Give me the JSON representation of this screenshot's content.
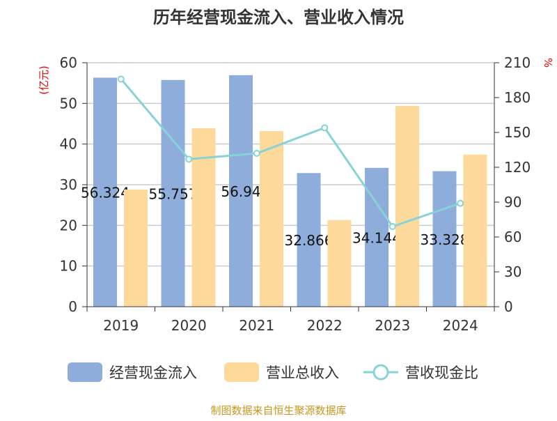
{
  "chart_data": {
    "type": "bar",
    "title": "历年经营现金流入、营业收入情况",
    "categories": [
      "2019",
      "2020",
      "2021",
      "2022",
      "2023",
      "2024"
    ],
    "ylabel_left": "(亿元)",
    "ylabel_right": "%",
    "ylim_left": [
      0,
      60
    ],
    "ylim_right": [
      0,
      210
    ],
    "yticks_left": [
      0,
      10,
      20,
      30,
      40,
      50,
      60
    ],
    "yticks_right": [
      0,
      30,
      60,
      90,
      120,
      150,
      180,
      210
    ],
    "grid": true,
    "legend_position": "bottom",
    "series": [
      {
        "name": "经营现金流入",
        "type": "bar",
        "axis": "left",
        "color": "#8eaddb",
        "values": [
          56.324,
          55.757,
          56.94,
          32.866,
          34.144,
          33.328
        ],
        "labels": [
          "56.324",
          "55.757",
          "56.94",
          "32.866",
          "34.144",
          "33.328"
        ]
      },
      {
        "name": "营业总收入",
        "type": "bar",
        "axis": "left",
        "color": "#fdd99b",
        "values": [
          28.8,
          43.9,
          43.2,
          21.3,
          49.4,
          37.4
        ]
      },
      {
        "name": "营收现金比",
        "type": "line",
        "axis": "right",
        "color": "#86d4d8",
        "values": [
          196,
          127,
          132,
          154,
          69,
          89
        ]
      }
    ]
  },
  "footer": "制图数据来自恒生聚源数据库"
}
